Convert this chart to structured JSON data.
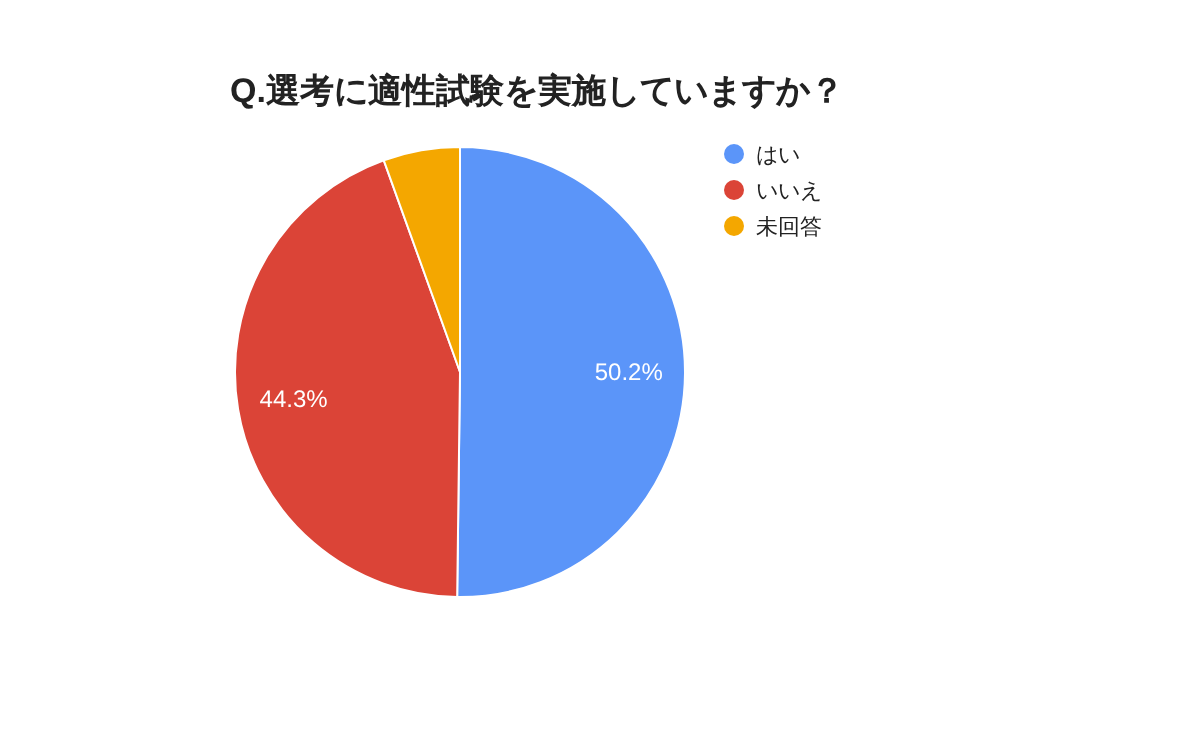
{
  "chart_data": {
    "type": "pie",
    "title": "Q.選考に適性試験を実施していますか？",
    "categories": [
      "はい",
      "いいえ",
      "未回答"
    ],
    "values": [
      50.2,
      44.3,
      5.5
    ],
    "colors": [
      "#5b95f9",
      "#db4437",
      "#f4a700"
    ],
    "value_labels": [
      "50.2%",
      "44.3%",
      null
    ],
    "legend": "top right"
  }
}
